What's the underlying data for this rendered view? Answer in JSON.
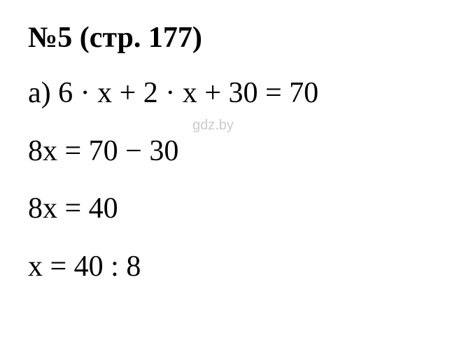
{
  "heading": "№5 (стр. 177)",
  "lines": {
    "line1": "а) 6 · x + 2 · x + 30 = 70",
    "line2": "8x = 70 − 30",
    "line3": "8x = 40",
    "line4": "x = 40 : 8"
  },
  "watermark": "gdz.by",
  "colors": {
    "text": "#000000",
    "watermark": "#cccccc",
    "background": "#ffffff"
  },
  "fonts": {
    "main_family": "Times New Roman",
    "main_size": 42,
    "heading_weight": "bold",
    "line_weight": "normal",
    "watermark_family": "Arial",
    "watermark_size": 20
  }
}
